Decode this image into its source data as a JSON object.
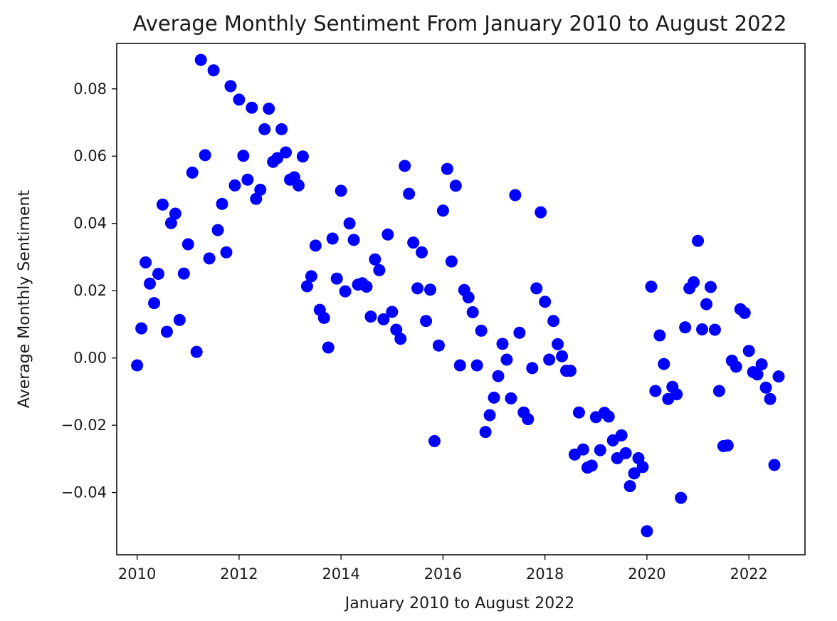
{
  "chart_data": {
    "type": "scatter",
    "title": "Average Monthly Sentiment From January 2010 to August 2022",
    "xlabel": "January 2010 to August 2022",
    "ylabel": "Average Monthly Sentiment",
    "xlim": [
      2009.6,
      2023.1
    ],
    "ylim": [
      -0.0585,
      0.0935
    ],
    "xticks": [
      2010,
      2012,
      2014,
      2016,
      2018,
      2020,
      2022
    ],
    "xtick_labels": [
      "2010",
      "2012",
      "2014",
      "2016",
      "2018",
      "2020",
      "2022"
    ],
    "yticks": [
      -0.04,
      -0.02,
      0.0,
      0.02,
      0.04,
      0.06,
      0.08
    ],
    "ytick_labels": [
      "−0.04",
      "−0.02",
      "0.00",
      "0.02",
      "0.04",
      "0.06",
      "0.08"
    ],
    "grid": false,
    "marker_color": "#0000ff",
    "series": [
      {
        "values": [
          -0.0022,
          0.0088,
          0.0284,
          0.0221,
          0.0163,
          0.025,
          0.0456,
          0.0078,
          0.0401,
          0.0429,
          0.0113,
          0.0251,
          0.0338,
          0.0551,
          0.0018,
          0.0886,
          0.0603,
          0.0296,
          0.0855,
          0.038,
          0.0458,
          0.0314,
          0.0808,
          0.0513,
          0.0768,
          0.0601,
          0.053,
          0.0744,
          0.0473,
          0.05,
          0.068,
          0.0741,
          0.0583,
          0.0594,
          0.068,
          0.0611,
          0.053,
          0.0537,
          0.0513,
          0.0599,
          0.0213,
          0.0243,
          0.0334,
          0.0143,
          0.0119,
          0.0031,
          0.0355,
          0.0236,
          0.0497,
          0.0198,
          0.04,
          0.0351,
          0.0218,
          0.0222,
          0.0212,
          0.0123,
          0.0293,
          0.0261,
          0.0115,
          0.0367,
          0.0137,
          0.0084,
          0.0057,
          0.0571,
          0.0488,
          0.0343,
          0.0207,
          0.0314,
          0.011,
          0.0203,
          -0.0247,
          0.0037,
          0.0438,
          0.0562,
          0.0287,
          0.0512,
          -0.0022,
          0.0202,
          0.018,
          0.0136,
          -0.0022,
          0.0081,
          -0.022,
          -0.017,
          -0.0118,
          -0.0054,
          0.0042,
          -0.0005,
          -0.012,
          0.0484,
          0.0075,
          -0.0162,
          -0.0182,
          -0.003,
          0.0207,
          0.0433,
          0.0167,
          -0.0005,
          0.011,
          0.0041,
          0.0005,
          -0.0038,
          -0.0038,
          -0.0287,
          -0.0162,
          -0.0272,
          -0.0326,
          -0.032,
          -0.0176,
          -0.0274,
          -0.0163,
          -0.0174,
          -0.0245,
          -0.0298,
          -0.023,
          -0.0283,
          -0.0381,
          -0.0343,
          -0.0298,
          -0.0324,
          -0.0515,
          0.0212,
          -0.0098,
          0.0067,
          -0.0018,
          -0.0122,
          -0.0086,
          -0.0108,
          -0.0416,
          0.0091,
          0.0207,
          0.0225,
          0.0348,
          0.0085,
          0.016,
          0.0211,
          0.0084,
          -0.0098,
          -0.0262,
          -0.026,
          -0.0008,
          -0.0026,
          0.0145,
          0.0134,
          0.0021,
          -0.0042,
          -0.0049,
          -0.0019,
          -0.0088,
          -0.0122,
          -0.0318,
          -0.0055
        ]
      }
    ]
  }
}
